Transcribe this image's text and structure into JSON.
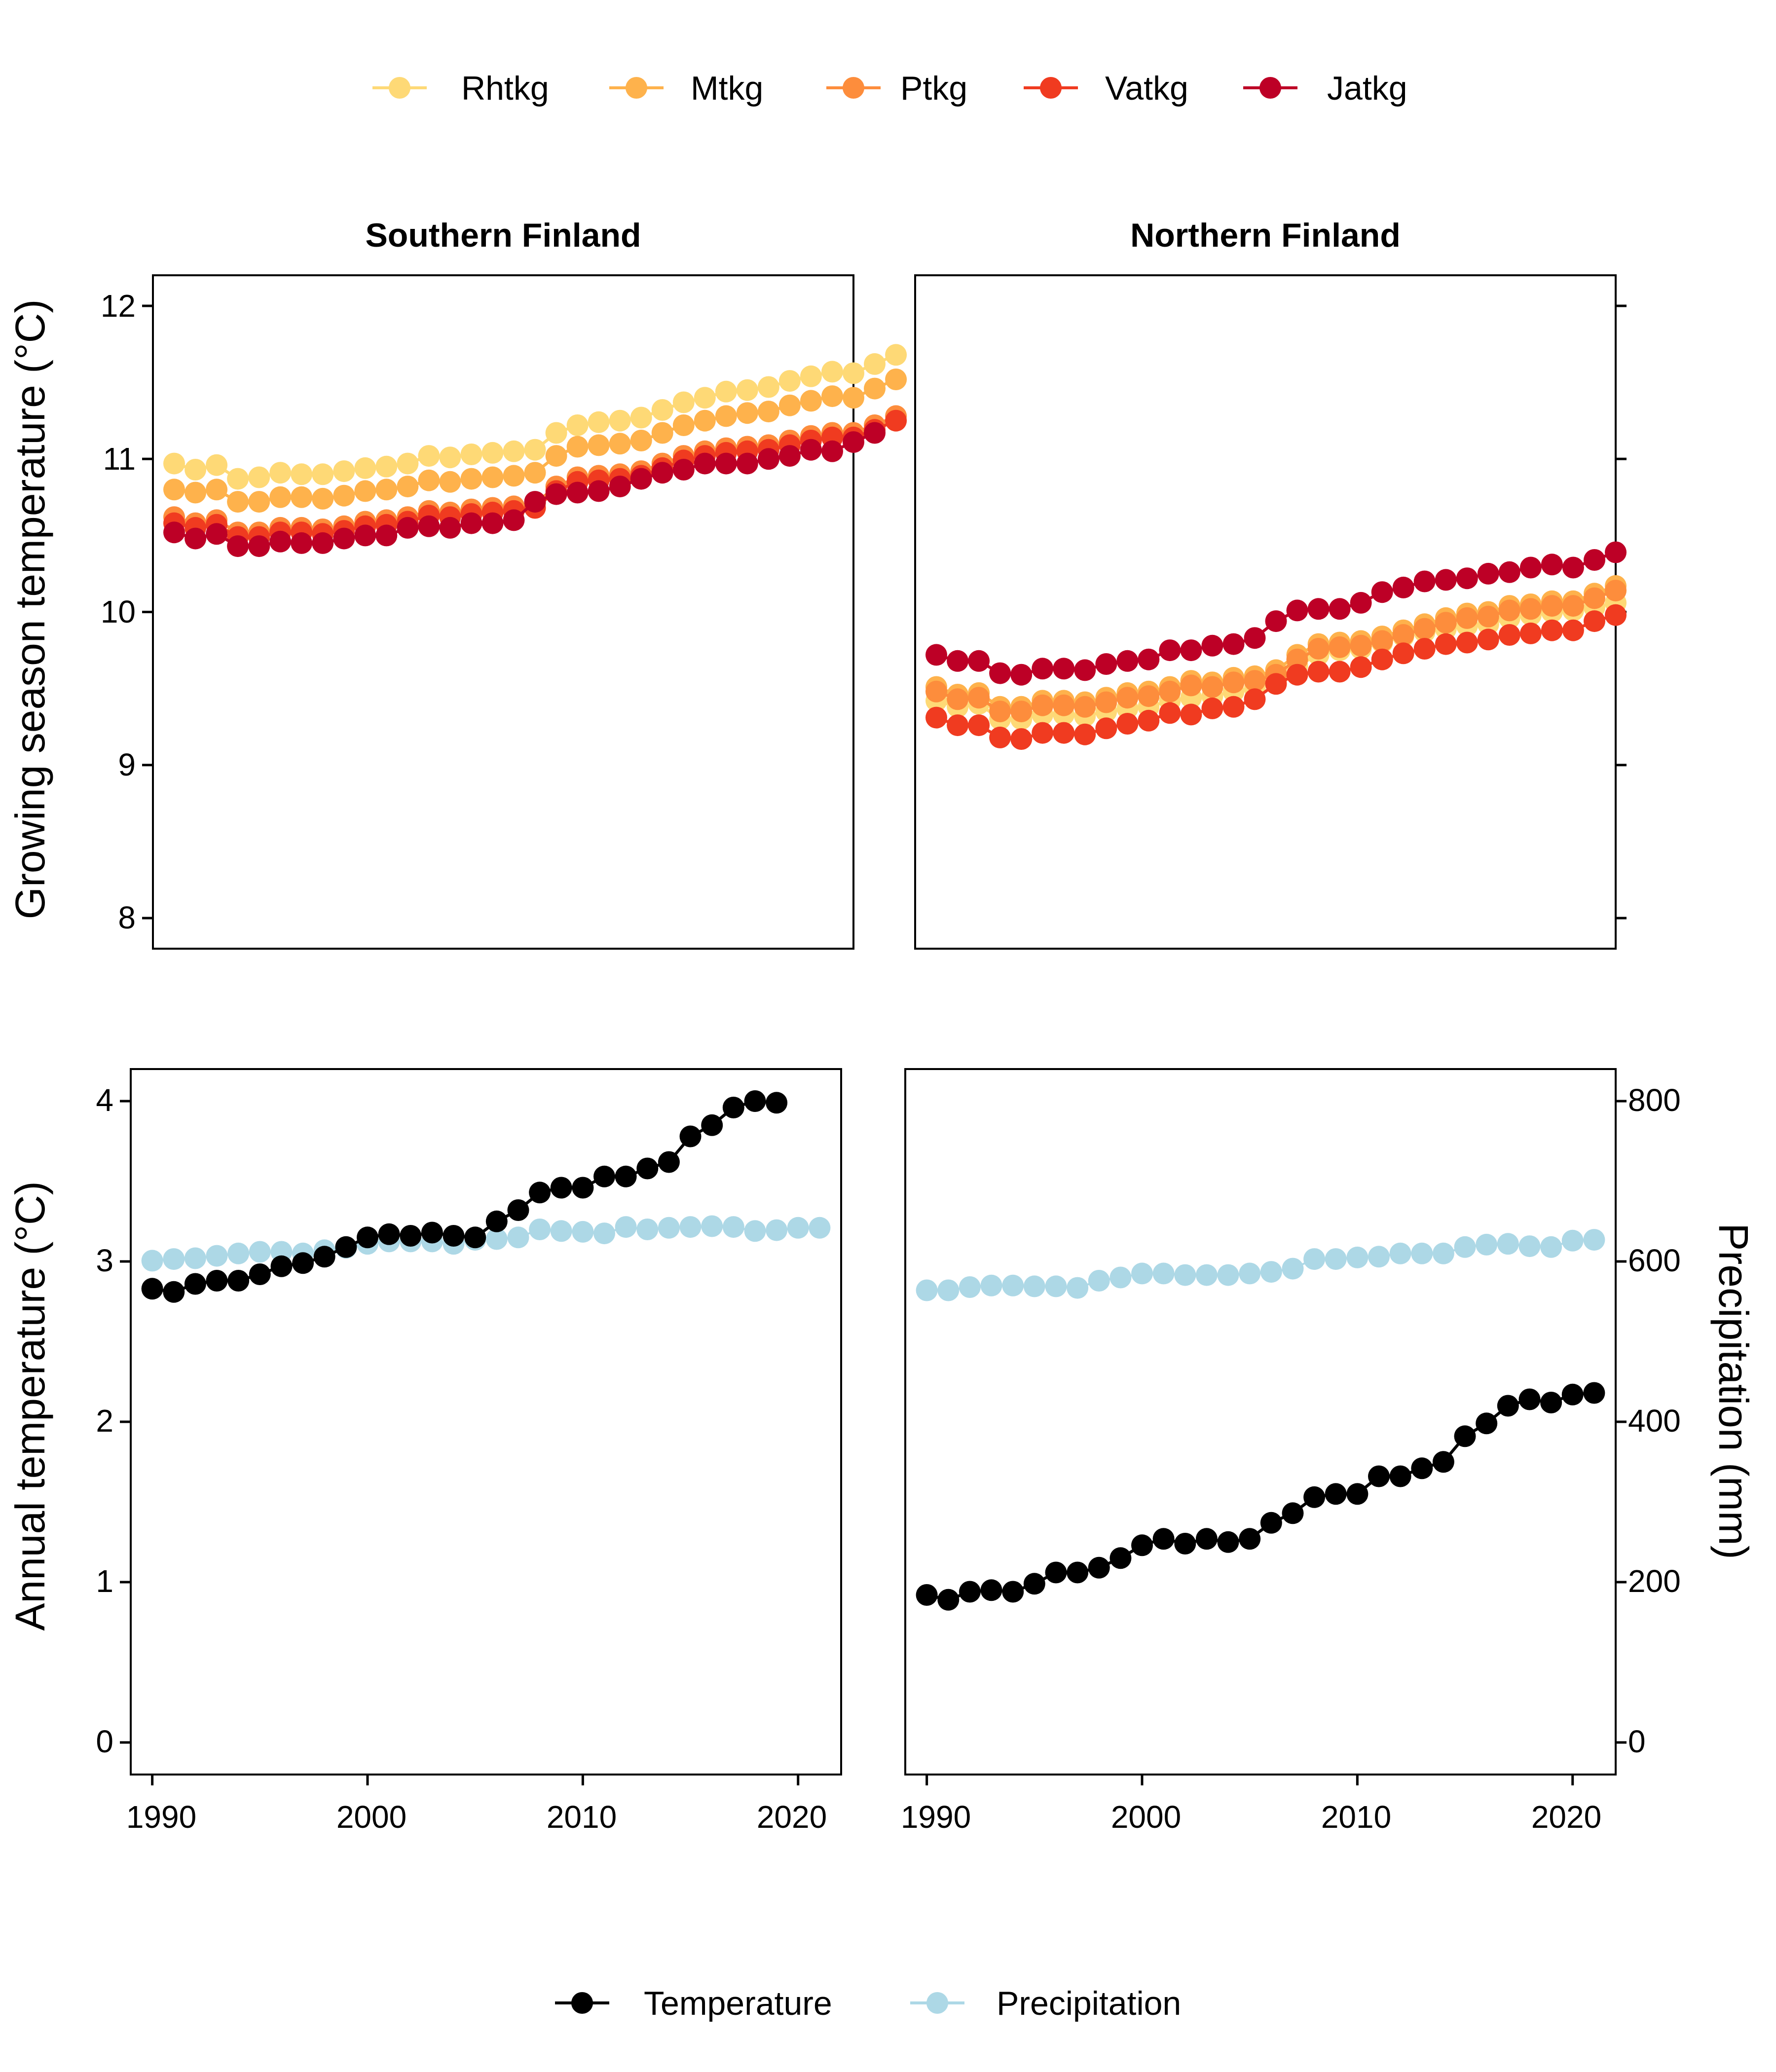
{
  "legend_top": [
    {
      "name": "Rhtkg",
      "color": "#FED976"
    },
    {
      "name": "Mtkg",
      "color": "#FEB24C"
    },
    {
      "name": "Ptkg",
      "color": "#FD8D3C"
    },
    {
      "name": "Vatkg",
      "color": "#F03B20"
    },
    {
      "name": "Jatkg",
      "color": "#BD0026"
    }
  ],
  "legend_bottom": [
    {
      "name": "Temperature",
      "color": "#000000"
    },
    {
      "name": "Precipitation",
      "color": "#ADD8E6"
    }
  ],
  "chart_data": [
    {
      "type": "line",
      "title": "Southern Finland",
      "ylabel": "Growing season temperature (°C)",
      "ylim": [
        7.8,
        12.2
      ],
      "xlim": [
        1989,
        2022
      ],
      "yticks": [
        8,
        9,
        10,
        11,
        12
      ],
      "x_start": 1990,
      "series": [
        {
          "name": "Rhtkg",
          "color": "#FED976",
          "values": [
            10.97,
            10.93,
            10.96,
            10.87,
            10.88,
            10.91,
            10.9,
            10.9,
            10.92,
            10.94,
            10.95,
            10.97,
            11.02,
            11.01,
            11.03,
            11.04,
            11.05,
            11.06,
            11.17,
            11.22,
            11.24,
            11.25,
            11.27,
            11.32,
            11.37,
            11.4,
            11.44,
            11.45,
            11.47,
            11.51,
            11.54,
            11.57,
            11.56,
            11.62,
            11.68
          ]
        },
        {
          "name": "Mtkg",
          "color": "#FEB24C",
          "values": [
            10.8,
            10.78,
            10.8,
            10.72,
            10.72,
            10.75,
            10.75,
            10.74,
            10.76,
            10.79,
            10.8,
            10.82,
            10.86,
            10.85,
            10.87,
            10.88,
            10.89,
            10.91,
            11.02,
            11.08,
            11.09,
            11.1,
            11.12,
            11.17,
            11.22,
            11.25,
            11.28,
            11.3,
            11.31,
            11.35,
            11.38,
            11.41,
            11.4,
            11.46,
            11.52
          ]
        },
        {
          "name": "Ptkg",
          "color": "#FD8D3C",
          "values": [
            10.62,
            10.58,
            10.6,
            10.52,
            10.52,
            10.55,
            10.55,
            10.54,
            10.56,
            10.59,
            10.6,
            10.62,
            10.66,
            10.65,
            10.67,
            10.68,
            10.69,
            10.71,
            10.82,
            10.88,
            10.89,
            10.9,
            10.92,
            10.97,
            11.02,
            11.05,
            11.07,
            11.08,
            11.09,
            11.12,
            11.15,
            11.17,
            11.17,
            11.22,
            11.28
          ]
        },
        {
          "name": "Vatkg",
          "color": "#F03B20",
          "values": [
            10.58,
            10.55,
            10.57,
            10.49,
            10.49,
            10.52,
            10.52,
            10.51,
            10.53,
            10.56,
            10.57,
            10.59,
            10.63,
            10.62,
            10.64,
            10.65,
            10.66,
            10.68,
            10.79,
            10.85,
            10.86,
            10.87,
            10.89,
            10.94,
            10.99,
            11.02,
            11.04,
            11.05,
            11.06,
            11.09,
            11.12,
            11.14,
            11.14,
            11.19,
            11.25
          ]
        },
        {
          "name": "Jatkg",
          "color": "#BD0026",
          "values": [
            10.52,
            10.48,
            10.51,
            10.43,
            10.43,
            10.46,
            10.45,
            10.45,
            10.48,
            10.5,
            10.5,
            10.55,
            10.56,
            10.55,
            10.58,
            10.58,
            10.6,
            10.72,
            10.77,
            10.78,
            10.79,
            10.82,
            10.87,
            10.91,
            10.93,
            10.97,
            10.97,
            10.97,
            11.0,
            11.02,
            11.06,
            11.05,
            11.11,
            11.17
          ]
        }
      ]
    },
    {
      "type": "line",
      "title": "Northern Finland",
      "ylabel": "",
      "ylim": [
        7.8,
        12.2
      ],
      "xlim": [
        1989,
        2022
      ],
      "yticks": [
        8,
        9,
        10,
        11,
        12
      ],
      "x_start": 1990,
      "series": [
        {
          "name": "Rhtkg",
          "color": "#FED976",
          "values": [
            9.42,
            9.38,
            9.4,
            9.3,
            9.3,
            9.33,
            9.33,
            9.32,
            9.35,
            9.37,
            9.38,
            9.42,
            9.44,
            9.45,
            9.48,
            9.5,
            9.55,
            9.65,
            9.72,
            9.75,
            9.76,
            9.8,
            9.84,
            9.87,
            9.89,
            9.91,
            9.92,
            9.96,
            9.98,
            10.0,
            10.01,
            10.03,
            10.06
          ]
        },
        {
          "name": "Mtkg",
          "color": "#FEB24C",
          "values": [
            9.51,
            9.46,
            9.47,
            9.38,
            9.38,
            9.42,
            9.42,
            9.41,
            9.44,
            9.47,
            9.48,
            9.51,
            9.55,
            9.54,
            9.57,
            9.58,
            9.62,
            9.72,
            9.79,
            9.8,
            9.81,
            9.84,
            9.88,
            9.92,
            9.96,
            9.99,
            10.0,
            10.04,
            10.05,
            10.07,
            10.07,
            10.12,
            10.17
          ]
        },
        {
          "name": "Ptkg",
          "color": "#FD8D3C",
          "values": [
            9.48,
            9.43,
            9.44,
            9.35,
            9.35,
            9.39,
            9.39,
            9.38,
            9.41,
            9.44,
            9.45,
            9.48,
            9.52,
            9.51,
            9.54,
            9.55,
            9.59,
            9.69,
            9.76,
            9.77,
            9.78,
            9.81,
            9.85,
            9.89,
            9.93,
            9.96,
            9.97,
            10.01,
            10.02,
            10.04,
            10.04,
            10.09,
            10.14
          ]
        },
        {
          "name": "Vatkg",
          "color": "#F03B20",
          "values": [
            9.31,
            9.26,
            9.26,
            9.18,
            9.17,
            9.21,
            9.21,
            9.2,
            9.24,
            9.27,
            9.29,
            9.34,
            9.33,
            9.37,
            9.38,
            9.43,
            9.53,
            9.59,
            9.61,
            9.61,
            9.64,
            9.69,
            9.73,
            9.76,
            9.79,
            9.8,
            9.82,
            9.85,
            9.86,
            9.88,
            9.88,
            9.94,
            9.98
          ]
        },
        {
          "name": "Jatkg",
          "color": "#BD0026",
          "values": [
            9.72,
            9.68,
            9.68,
            9.6,
            9.59,
            9.63,
            9.63,
            9.62,
            9.66,
            9.68,
            9.69,
            9.75,
            9.75,
            9.78,
            9.79,
            9.83,
            9.94,
            10.01,
            10.02,
            10.02,
            10.06,
            10.13,
            10.16,
            10.2,
            10.21,
            10.22,
            10.25,
            10.26,
            10.29,
            10.31,
            10.29,
            10.34,
            10.39
          ]
        }
      ]
    },
    {
      "type": "line",
      "title": "",
      "ylabel": "Annual temperature (°C)",
      "ylim": [
        -0.2,
        4.2
      ],
      "xlim": [
        1989,
        2022
      ],
      "yticks": [
        0,
        1,
        2,
        3,
        4
      ],
      "x_start": 1990,
      "series": [
        {
          "name": "Temperature",
          "color": "#000000",
          "values": [
            2.83,
            2.81,
            2.86,
            2.88,
            2.88,
            2.92,
            2.97,
            2.99,
            3.03,
            3.09,
            3.15,
            3.17,
            3.16,
            3.18,
            3.16,
            3.15,
            3.25,
            3.32,
            3.43,
            3.46,
            3.46,
            3.53,
            3.53,
            3.58,
            3.62,
            3.78,
            3.85,
            3.96,
            4.0,
            3.99
          ]
        },
        {
          "name": "Precipitation",
          "color": "#ADD8E6",
          "values": [
            601,
            603,
            604,
            607,
            610,
            612,
            612,
            610,
            614,
            617,
            622,
            625,
            625,
            625,
            622,
            627,
            628,
            630,
            640,
            638,
            637,
            635,
            643,
            640,
            642,
            643,
            644,
            643,
            638,
            639,
            642,
            642
          ]
        }
      ]
    },
    {
      "type": "line",
      "title": "",
      "ylabel": "",
      "y2label": "Precipitation (mm)",
      "ylim": [
        -0.2,
        4.2
      ],
      "y2lim": [
        -40,
        840
      ],
      "xlim": [
        1989,
        2022
      ],
      "xticks": [
        1990,
        2000,
        2010,
        2020
      ],
      "yticks": [
        0,
        1,
        2,
        3,
        4
      ],
      "y2ticks": [
        0,
        200,
        400,
        600,
        800
      ],
      "x_start": 1990,
      "series": [
        {
          "name": "Temperature",
          "color": "#000000",
          "values": [
            0.92,
            0.89,
            0.94,
            0.95,
            0.94,
            0.99,
            1.06,
            1.06,
            1.09,
            1.15,
            1.23,
            1.27,
            1.24,
            1.27,
            1.25,
            1.27,
            1.37,
            1.43,
            1.53,
            1.55,
            1.55,
            1.66,
            1.66,
            1.71,
            1.75,
            1.91,
            1.99,
            2.1,
            2.14,
            2.12,
            2.17,
            2.18
          ]
        },
        {
          "name": "Precipitation",
          "color": "#ADD8E6",
          "values": [
            564,
            564,
            568,
            570,
            570,
            569,
            569,
            567,
            576,
            580,
            585,
            585,
            583,
            583,
            583,
            585,
            587,
            591,
            603,
            603,
            605,
            606,
            610,
            610,
            610,
            618,
            621,
            622,
            619,
            618,
            626,
            627
          ]
        }
      ]
    }
  ],
  "axes": {
    "x_tick_labels": [
      "1990",
      "2000",
      "2010",
      "2020"
    ],
    "top_y_tick_labels": [
      "8",
      "9",
      "10",
      "11",
      "12"
    ],
    "bottom_y_tick_labels": [
      "0",
      "1",
      "2",
      "3",
      "4"
    ],
    "right_y_tick_labels": [
      "0",
      "200",
      "400",
      "600",
      "800"
    ]
  }
}
